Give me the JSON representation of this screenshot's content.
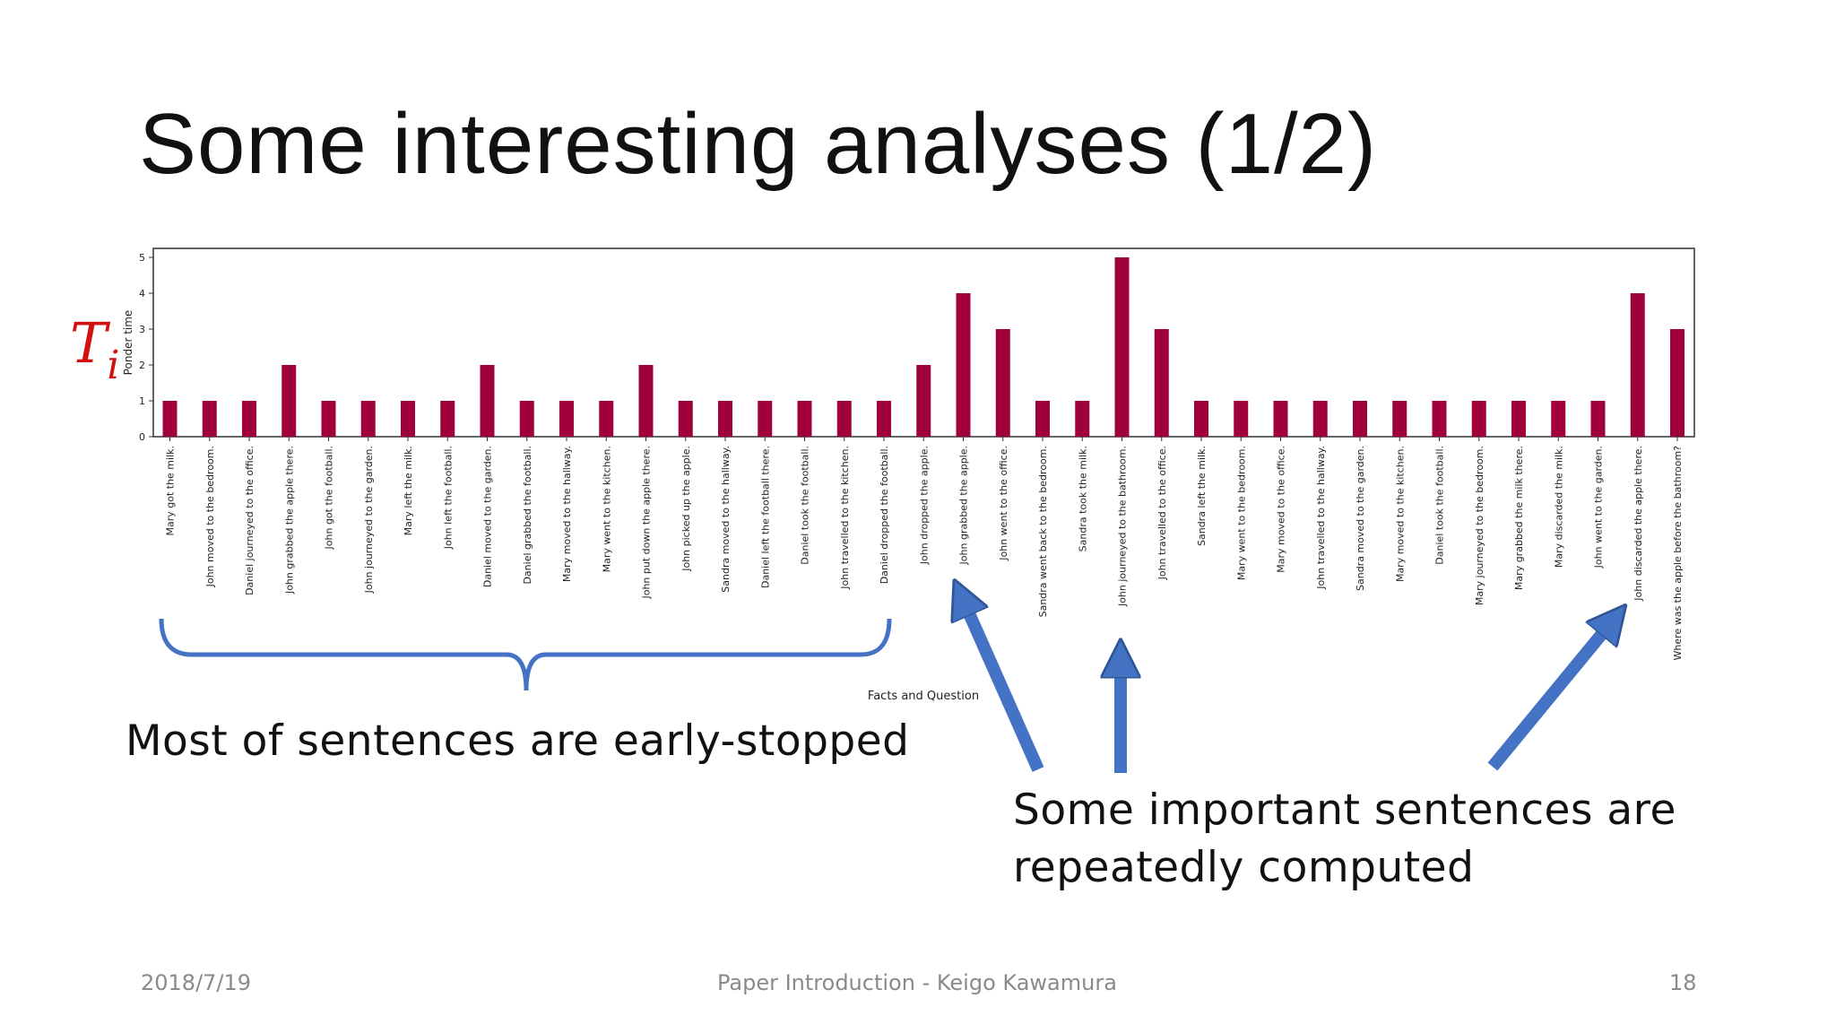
{
  "slide": {
    "title": "Some interesting analyses (1/2)",
    "ponder_symbol": "T",
    "ponder_subscript": "i",
    "caption_left": "Most of sentences are early-stopped",
    "caption_right_line1": "Some important sentences are",
    "caption_right_line2": "repeatedly computed"
  },
  "footer": {
    "date": "2018/7/19",
    "center": "Paper Introduction - Keigo Kawamura",
    "page": "18"
  },
  "colors": {
    "bar": "#a0003c",
    "arrow": "#4472c4",
    "brace": "#4472c4",
    "ti": "#d40f0f"
  },
  "chart_data": {
    "type": "bar",
    "xlabel": "Facts and Question",
    "ylabel": "Ponder time",
    "ylim": [
      0,
      5
    ],
    "yticks": [
      0,
      1,
      2,
      3,
      4,
      5
    ],
    "categories": [
      "Mary got the milk.",
      "John moved to the bedroom.",
      "Daniel journeyed to the office.",
      "John grabbed the apple there.",
      "John got the football.",
      "John journeyed to the garden.",
      "Mary left the milk.",
      "John left the football.",
      "Daniel moved to the garden.",
      "Daniel grabbed the football.",
      "Mary moved to the hallway.",
      "Mary went to the kitchen.",
      "John put down the apple there.",
      "John picked up the apple.",
      "Sandra moved to the hallway.",
      "Daniel left the football there.",
      "Daniel took the football.",
      "John travelled to the kitchen.",
      "Daniel dropped the football.",
      "John dropped the apple.",
      "John grabbed the apple.",
      "John went to the office.",
      "Sandra went back to the bedroom.",
      "Sandra took the milk.",
      "John journeyed to the bathroom.",
      "John travelled to the office.",
      "Sandra left the milk.",
      "Mary went to the bedroom.",
      "Mary moved to the office.",
      "John travelled to the hallway.",
      "Sandra moved to the garden.",
      "Mary moved to the kitchen.",
      "Daniel took the football.",
      "Mary journeyed to the bedroom.",
      "Mary grabbed the milk there.",
      "Mary discarded the milk.",
      "John went to the garden.",
      "John discarded the apple there.",
      "Where was the apple before the bathroom?"
    ],
    "values": [
      1,
      1,
      1,
      2,
      1,
      1,
      1,
      1,
      2,
      1,
      1,
      1,
      2,
      1,
      1,
      1,
      1,
      1,
      1,
      2,
      4,
      3,
      1,
      1,
      5,
      3,
      1,
      1,
      1,
      1,
      1,
      1,
      1,
      1,
      1,
      1,
      1,
      4,
      3
    ]
  }
}
